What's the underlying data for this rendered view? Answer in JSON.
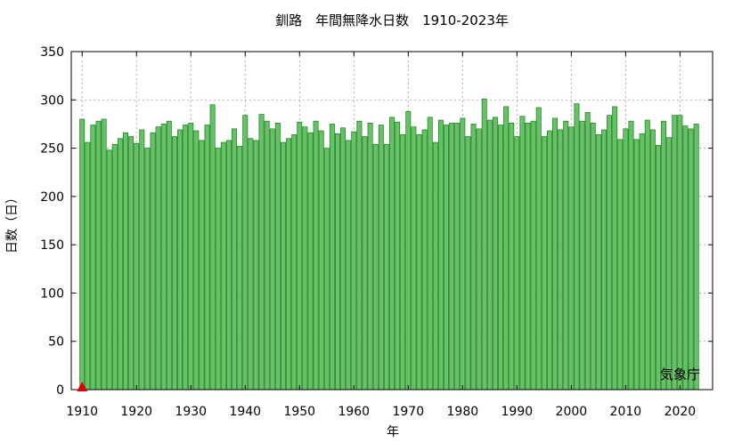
{
  "chart_data": {
    "type": "bar",
    "title": "釧路　年間無降水日数　1910-2023年",
    "xlabel": "年",
    "ylabel": "日数（日）",
    "watermark": "気象庁",
    "xlim": [
      1908,
      2026
    ],
    "ylim": [
      0,
      350
    ],
    "yticks": [
      0,
      50,
      100,
      150,
      200,
      250,
      300,
      350
    ],
    "xticks": [
      1910,
      1920,
      1930,
      1940,
      1950,
      1960,
      1970,
      1980,
      1990,
      2000,
      2010,
      2020
    ],
    "bar_color": "#66c266",
    "bar_edge": "#1f7a1f",
    "marker_color": "#dd0000",
    "marker_year": 1910,
    "start_year": 1910,
    "values": [
      280,
      256,
      274,
      278,
      280,
      248,
      254,
      260,
      266,
      262,
      255,
      269,
      250,
      266,
      272,
      275,
      278,
      262,
      269,
      274,
      276,
      268,
      258,
      274,
      295,
      250,
      256,
      258,
      270,
      252,
      284,
      260,
      258,
      285,
      278,
      270,
      276,
      256,
      260,
      264,
      277,
      272,
      266,
      278,
      268,
      250,
      275,
      265,
      271,
      258,
      267,
      278,
      262,
      276,
      254,
      274,
      254,
      282,
      277,
      264,
      288,
      272,
      264,
      269,
      282,
      256,
      279,
      274,
      276,
      276,
      281,
      262,
      275,
      270,
      301,
      279,
      282,
      274,
      293,
      276,
      262,
      283,
      276,
      278,
      292,
      262,
      268,
      281,
      269,
      278,
      272,
      296,
      278,
      287,
      276,
      264,
      269,
      284,
      293,
      259,
      270,
      278,
      259,
      265,
      279,
      269,
      253,
      278,
      261,
      284,
      284,
      273,
      270,
      275
    ]
  }
}
